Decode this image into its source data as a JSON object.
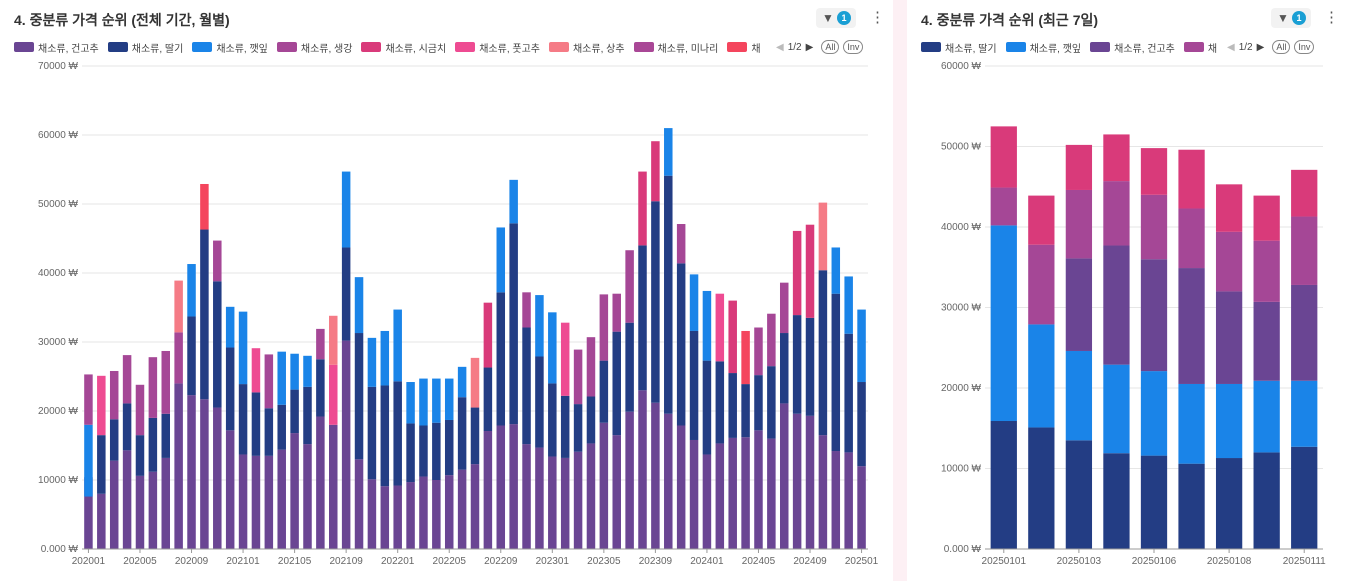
{
  "left": {
    "title": "4. 중분류 가격 순위 (전체 기간, 월별)",
    "filter_count": "1",
    "legend_items": [
      {
        "name": "채소류, 건고추",
        "color": "#6a4593"
      },
      {
        "name": "채소류, 딸기",
        "color": "#233d84"
      },
      {
        "name": "채소류, 깻잎",
        "color": "#1a84e8"
      },
      {
        "name": "채소류, 생강",
        "color": "#a54796"
      },
      {
        "name": "채소류, 시금치",
        "color": "#d93a7a"
      },
      {
        "name": "채소류, 풋고추",
        "color": "#ee4b92"
      },
      {
        "name": "채소류, 상추",
        "color": "#f57b86"
      },
      {
        "name": "채소류, 미나리",
        "color": "#a94796"
      },
      {
        "name": "채",
        "color": "#f4455d"
      }
    ],
    "page": "1/2",
    "all_label": "All",
    "inv_label": "Inv"
  },
  "right": {
    "title": "4. 중분류 가격 순위 (최근 7일)",
    "filter_count": "1",
    "legend_items": [
      {
        "name": "채소류, 딸기",
        "color": "#233d84"
      },
      {
        "name": "채소류, 깻잎",
        "color": "#1a84e8"
      },
      {
        "name": "채소류, 건고추",
        "color": "#6a4593"
      },
      {
        "name": "채",
        "color": "#a54796"
      }
    ],
    "page": "1/2",
    "all_label": "All",
    "inv_label": "Inv"
  },
  "chart_data": [
    {
      "type": "bar",
      "stacked": true,
      "title": "4. 중분류 가격 순위 (전체 기간, 월별)",
      "ylim": [
        0,
        70000
      ],
      "yticks": [
        "0.000 ₩",
        "10000 ₩",
        "20000 ₩",
        "30000 ₩",
        "40000 ₩",
        "50000 ₩",
        "60000 ₩",
        "70000 ₩"
      ],
      "xtick_labels": [
        "202001",
        "202005",
        "202009",
        "202101",
        "202105",
        "202109",
        "202201",
        "202205",
        "202209",
        "202301",
        "202305",
        "202309",
        "202401",
        "202405",
        "202409",
        "202501"
      ],
      "grid": true,
      "legend": "top",
      "segment_colors": [
        "#6a4593",
        "#233d84",
        "#1a84e8",
        "#a54796",
        "#d93a7a",
        "#ee4b92",
        "#f57b86",
        "#f4455d"
      ],
      "bars": [
        [
          [
            0,
            10400
          ],
          [
            1,
            7600
          ],
          [
            2,
            18000
          ],
          [
            3,
            25300
          ]
        ],
        [
          [
            0,
            8000
          ],
          [
            1,
            16500
          ],
          [
            5,
            25100
          ]
        ],
        [
          [
            0,
            12800
          ],
          [
            1,
            18800
          ],
          [
            3,
            25800
          ]
        ],
        [
          [
            0,
            14300
          ],
          [
            1,
            21100
          ],
          [
            3,
            28100
          ]
        ],
        [
          [
            0,
            10600
          ],
          [
            1,
            16500
          ],
          [
            3,
            23800
          ]
        ],
        [
          [
            0,
            11200
          ],
          [
            1,
            19000
          ],
          [
            3,
            27800
          ]
        ],
        [
          [
            0,
            13200
          ],
          [
            1,
            19600
          ],
          [
            3,
            28700
          ]
        ],
        [
          [
            0,
            24000
          ],
          [
            3,
            31400
          ],
          [
            6,
            38900
          ]
        ],
        [
          [
            0,
            22300
          ],
          [
            1,
            33700
          ],
          [
            2,
            41300
          ]
        ],
        [
          [
            0,
            21700
          ],
          [
            1,
            46300
          ],
          [
            7,
            52900
          ]
        ],
        [
          [
            0,
            20500
          ],
          [
            1,
            38800
          ],
          [
            3,
            44700
          ]
        ],
        [
          [
            0,
            17200
          ],
          [
            1,
            29200
          ],
          [
            2,
            35100
          ]
        ],
        [
          [
            0,
            13700
          ],
          [
            1,
            23900
          ],
          [
            2,
            34400
          ]
        ],
        [
          [
            0,
            13500
          ],
          [
            1,
            22700
          ],
          [
            5,
            29100
          ]
        ],
        [
          [
            0,
            13500
          ],
          [
            1,
            20400
          ],
          [
            3,
            28200
          ]
        ],
        [
          [
            0,
            14400
          ],
          [
            1,
            20900
          ],
          [
            2,
            28600
          ]
        ],
        [
          [
            0,
            16800
          ],
          [
            1,
            23100
          ],
          [
            2,
            28300
          ]
        ],
        [
          [
            0,
            15200
          ],
          [
            1,
            23500
          ],
          [
            2,
            28000
          ]
        ],
        [
          [
            0,
            19200
          ],
          [
            1,
            27500
          ],
          [
            3,
            31900
          ]
        ],
        [
          [
            0,
            18000
          ],
          [
            5,
            26700
          ],
          [
            6,
            33800
          ]
        ],
        [
          [
            0,
            30200
          ],
          [
            1,
            43700
          ],
          [
            2,
            54700
          ]
        ],
        [
          [
            0,
            13000
          ],
          [
            1,
            31300
          ],
          [
            2,
            39400
          ]
        ],
        [
          [
            0,
            10100
          ],
          [
            1,
            23500
          ],
          [
            2,
            30600
          ]
        ],
        [
          [
            0,
            9100
          ],
          [
            1,
            23700
          ],
          [
            2,
            31600
          ]
        ],
        [
          [
            0,
            9200
          ],
          [
            1,
            24300
          ],
          [
            2,
            34700
          ]
        ],
        [
          [
            0,
            9700
          ],
          [
            1,
            18200
          ],
          [
            2,
            24200
          ]
        ],
        [
          [
            0,
            10500
          ],
          [
            1,
            17900
          ],
          [
            2,
            24700
          ]
        ],
        [
          [
            0,
            10000
          ],
          [
            1,
            18300
          ],
          [
            2,
            24700
          ]
        ],
        [
          [
            0,
            10700
          ],
          [
            1,
            18700
          ],
          [
            2,
            24700
          ]
        ],
        [
          [
            0,
            11500
          ],
          [
            1,
            22000
          ],
          [
            2,
            26400
          ]
        ],
        [
          [
            0,
            12300
          ],
          [
            1,
            20500
          ],
          [
            6,
            27700
          ]
        ],
        [
          [
            0,
            17100
          ],
          [
            1,
            26300
          ],
          [
            4,
            35700
          ]
        ],
        [
          [
            0,
            17900
          ],
          [
            1,
            37200
          ],
          [
            2,
            46600
          ]
        ],
        [
          [
            0,
            18100
          ],
          [
            1,
            47200
          ],
          [
            2,
            53500
          ]
        ],
        [
          [
            0,
            15200
          ],
          [
            1,
            32100
          ],
          [
            3,
            37200
          ]
        ],
        [
          [
            0,
            14700
          ],
          [
            1,
            27900
          ],
          [
            2,
            36800
          ]
        ],
        [
          [
            0,
            13400
          ],
          [
            1,
            24000
          ],
          [
            2,
            34300
          ]
        ],
        [
          [
            0,
            13200
          ],
          [
            1,
            22200
          ],
          [
            5,
            32800
          ]
        ],
        [
          [
            0,
            14100
          ],
          [
            1,
            21000
          ],
          [
            3,
            28900
          ]
        ],
        [
          [
            0,
            15300
          ],
          [
            1,
            22100
          ],
          [
            3,
            30700
          ]
        ],
        [
          [
            0,
            18300
          ],
          [
            1,
            27300
          ],
          [
            3,
            36900
          ]
        ],
        [
          [
            0,
            16500
          ],
          [
            1,
            31500
          ],
          [
            3,
            37000
          ]
        ],
        [
          [
            0,
            19900
          ],
          [
            1,
            32800
          ],
          [
            3,
            43300
          ]
        ],
        [
          [
            0,
            23000
          ],
          [
            1,
            44000
          ],
          [
            4,
            54700
          ]
        ],
        [
          [
            0,
            21200
          ],
          [
            1,
            50400
          ],
          [
            4,
            59100
          ]
        ],
        [
          [
            0,
            19600
          ],
          [
            1,
            54100
          ],
          [
            2,
            61000
          ]
        ],
        [
          [
            0,
            17900
          ],
          [
            1,
            41400
          ],
          [
            3,
            47100
          ]
        ],
        [
          [
            0,
            15800
          ],
          [
            1,
            31600
          ],
          [
            2,
            39800
          ]
        ],
        [
          [
            0,
            13700
          ],
          [
            1,
            27300
          ],
          [
            2,
            37400
          ]
        ],
        [
          [
            0,
            15300
          ],
          [
            1,
            27200
          ],
          [
            5,
            37000
          ]
        ],
        [
          [
            0,
            16100
          ],
          [
            1,
            25500
          ],
          [
            4,
            36000
          ]
        ],
        [
          [
            0,
            16200
          ],
          [
            1,
            23900
          ],
          [
            7,
            31600
          ]
        ],
        [
          [
            0,
            17200
          ],
          [
            1,
            25200
          ],
          [
            3,
            32100
          ]
        ],
        [
          [
            0,
            16000
          ],
          [
            1,
            26500
          ],
          [
            3,
            34100
          ]
        ],
        [
          [
            0,
            21100
          ],
          [
            1,
            31300
          ],
          [
            3,
            38600
          ]
        ],
        [
          [
            0,
            19600
          ],
          [
            1,
            33900
          ],
          [
            4,
            46100
          ]
        ],
        [
          [
            0,
            19300
          ],
          [
            1,
            33500
          ],
          [
            4,
            47000
          ]
        ],
        [
          [
            0,
            16500
          ],
          [
            1,
            40400
          ],
          [
            6,
            50200
          ]
        ],
        [
          [
            0,
            14200
          ],
          [
            1,
            37000
          ],
          [
            2,
            43700
          ]
        ],
        [
          [
            0,
            14000
          ],
          [
            1,
            31200
          ],
          [
            2,
            39500
          ]
        ],
        [
          [
            0,
            12000
          ],
          [
            1,
            24200
          ],
          [
            2,
            34700
          ]
        ]
      ]
    },
    {
      "type": "bar",
      "stacked": true,
      "title": "4. 중분류 가격 순위 (최근 7일)",
      "ylim": [
        0,
        60000
      ],
      "yticks": [
        "0.000 ₩",
        "10000 ₩",
        "20000 ₩",
        "30000 ₩",
        "40000 ₩",
        "50000 ₩",
        "60000 ₩"
      ],
      "xtick_labels": [
        "20250101",
        "20250103",
        "20250106",
        "20250108",
        "20250111"
      ],
      "grid": true,
      "legend": "top",
      "segment_colors": [
        "#233d84",
        "#1a84e8",
        "#6a4593",
        "#a54796",
        "#d93a7a"
      ],
      "bars": [
        [
          [
            0,
            15900
          ],
          [
            1,
            40200
          ],
          [
            3,
            44900
          ],
          [
            4,
            52500
          ]
        ],
        [
          [
            0,
            15100
          ],
          [
            1,
            27900
          ],
          [
            3,
            37800
          ],
          [
            4,
            43900
          ]
        ],
        [
          [
            0,
            13500
          ],
          [
            1,
            24600
          ],
          [
            2,
            36100
          ],
          [
            3,
            44600
          ],
          [
            4,
            50200
          ]
        ],
        [
          [
            0,
            11900
          ],
          [
            1,
            22900
          ],
          [
            2,
            37700
          ],
          [
            3,
            45700
          ],
          [
            4,
            51500
          ]
        ],
        [
          [
            0,
            11600
          ],
          [
            1,
            22100
          ],
          [
            2,
            36000
          ],
          [
            3,
            44000
          ],
          [
            4,
            49800
          ]
        ],
        [
          [
            0,
            10600
          ],
          [
            1,
            20500
          ],
          [
            2,
            34900
          ],
          [
            3,
            42300
          ],
          [
            4,
            49600
          ]
        ],
        [
          [
            0,
            11300
          ],
          [
            1,
            20500
          ],
          [
            2,
            32000
          ],
          [
            3,
            39400
          ],
          [
            4,
            45300
          ]
        ],
        [
          [
            0,
            12000
          ],
          [
            1,
            20900
          ],
          [
            2,
            30700
          ],
          [
            3,
            38300
          ],
          [
            4,
            43900
          ]
        ],
        [
          [
            0,
            12700
          ],
          [
            1,
            20900
          ],
          [
            2,
            32800
          ],
          [
            3,
            41300
          ],
          [
            4,
            47100
          ]
        ]
      ]
    }
  ]
}
